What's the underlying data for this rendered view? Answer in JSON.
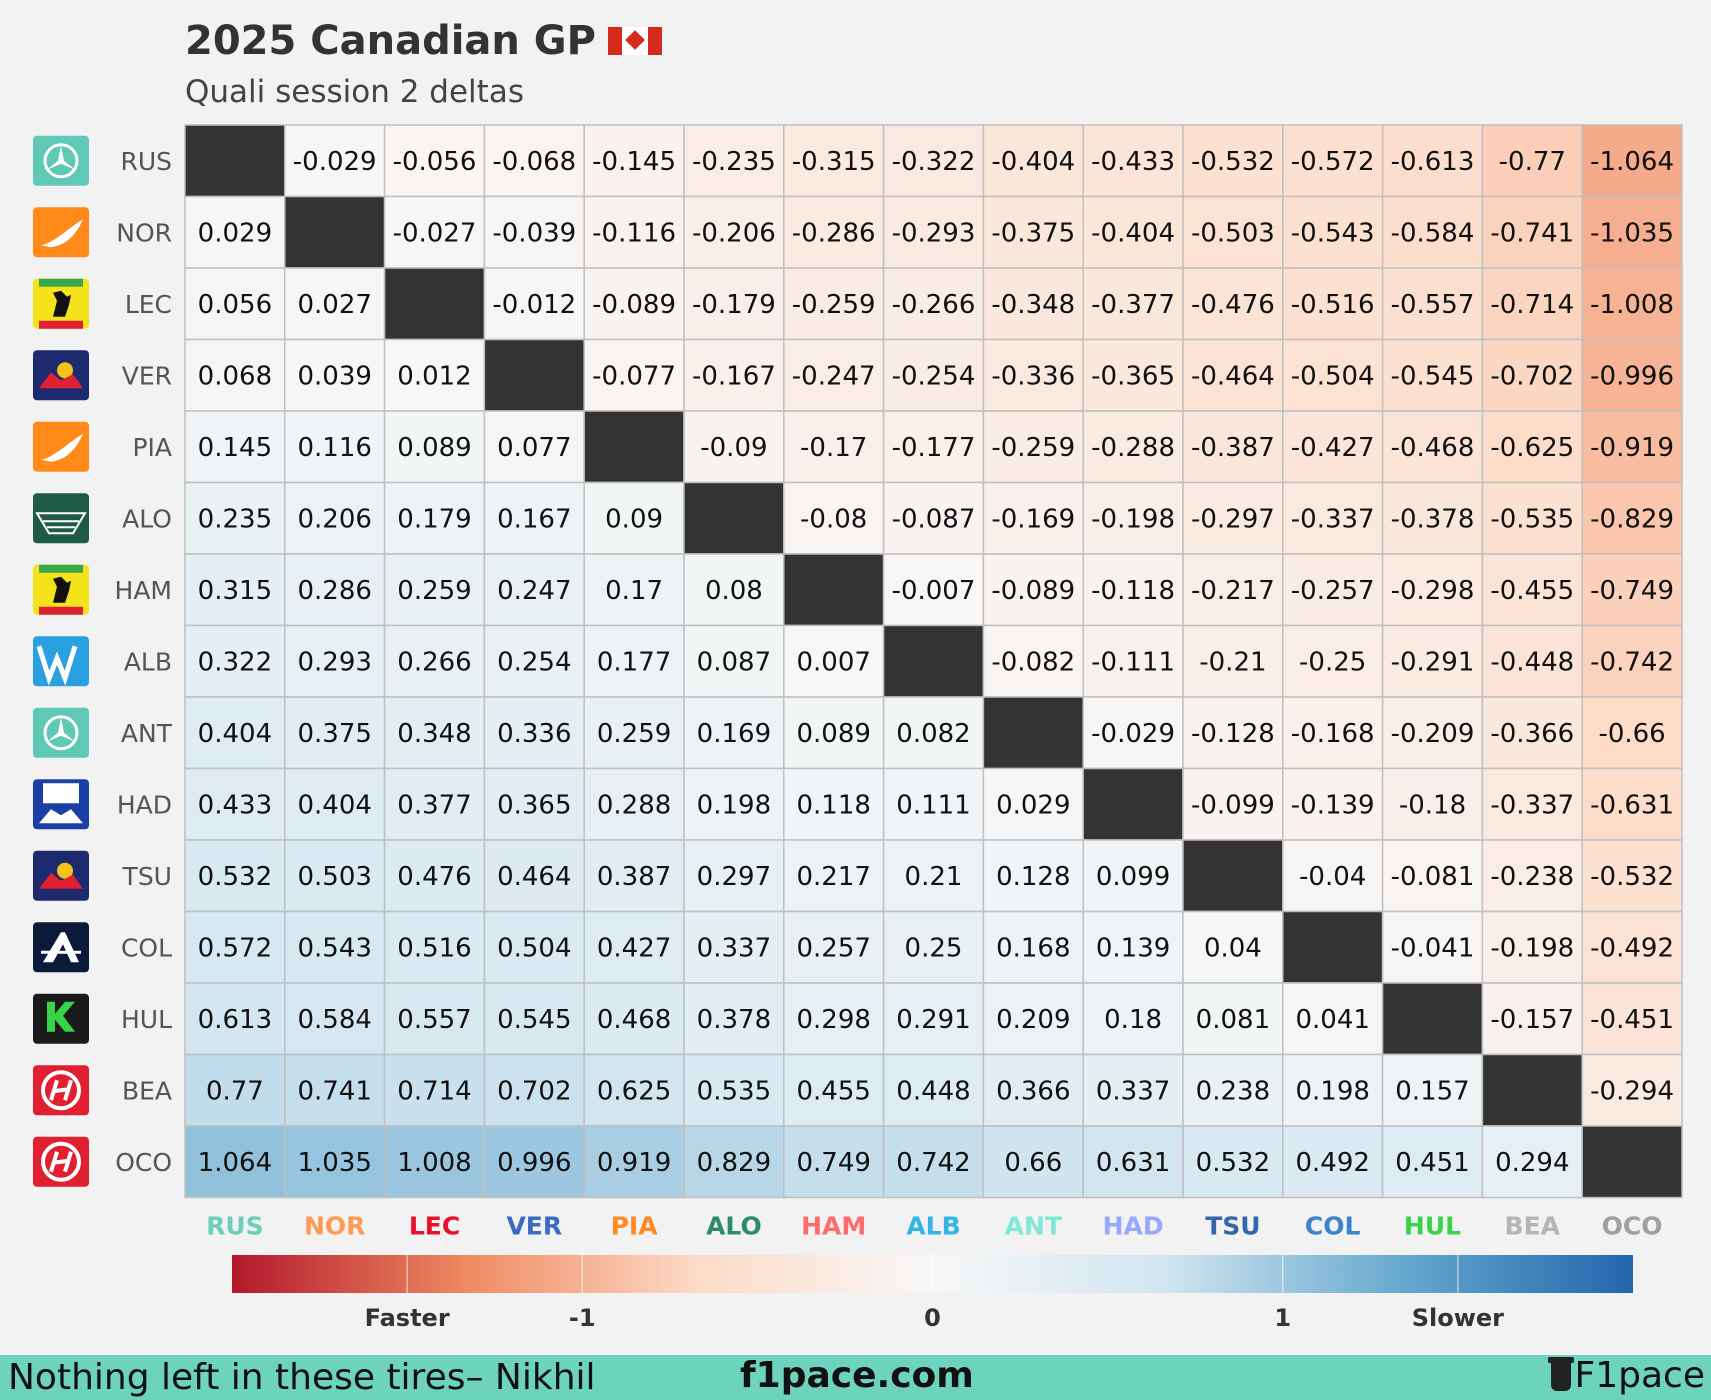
{
  "title": "2025 Canadian GP",
  "subtitle": "Quali session 2 deltas",
  "flag_icon": "canada-flag-icon",
  "footer": {
    "left": "Nothing left in these tires– Nikhil",
    "center": "f1pace.com",
    "brand": "F1pace"
  },
  "colorbar": {
    "labels": [
      "Faster",
      "-1",
      "0",
      "1",
      "Slower"
    ],
    "colors": [
      "#b2182b",
      "#ef8a62",
      "#fddbc7",
      "#f7f7f7",
      "#d1e5f0",
      "#67a9cf",
      "#2166ac"
    ]
  },
  "chart_data": {
    "type": "heatmap",
    "title": "2025 Canadian GP",
    "subtitle": "Quali session 2 deltas",
    "drivers": [
      "RUS",
      "NOR",
      "LEC",
      "VER",
      "PIA",
      "ALO",
      "HAM",
      "ALB",
      "ANT",
      "HAD",
      "TSU",
      "COL",
      "HUL",
      "BEA",
      "OCO"
    ],
    "teams": [
      "mercedes",
      "mclaren",
      "ferrari",
      "redbull",
      "mclaren",
      "astonmartin",
      "ferrari",
      "williams",
      "mercedes",
      "racingbulls",
      "redbull",
      "alpine",
      "sauber",
      "haas",
      "haas"
    ],
    "team_icons": [
      "mercedes-logo-icon",
      "mclaren-logo-icon",
      "ferrari-logo-icon",
      "redbull-logo-icon",
      "mclaren-logo-icon",
      "aston-martin-logo-icon",
      "ferrari-logo-icon",
      "williams-logo-icon",
      "mercedes-logo-icon",
      "racing-bulls-logo-icon",
      "redbull-logo-icon",
      "alpine-logo-icon",
      "sauber-logo-icon",
      "haas-logo-icon",
      "haas-logo-icon"
    ],
    "driver_colors": [
      "#6fcfb6",
      "#ff9a52",
      "#e8102a",
      "#3a6bc2",
      "#ff8a1f",
      "#2e8b67",
      "#ff6a6a",
      "#33b5e6",
      "#7fe8d8",
      "#97a8ff",
      "#3366aa",
      "#3a86c8",
      "#39d34a",
      "#b5b5b5",
      "#a0a0a0"
    ],
    "times": [
      0.0,
      0.029,
      0.056,
      0.068,
      0.145,
      0.235,
      0.315,
      0.322,
      0.404,
      0.433,
      0.532,
      0.572,
      0.613,
      0.77,
      1.064
    ],
    "cell_rule": "value[row][col] = times[row] - times[col]",
    "diagonal": "blank",
    "color_range": [
      -2,
      2
    ]
  }
}
